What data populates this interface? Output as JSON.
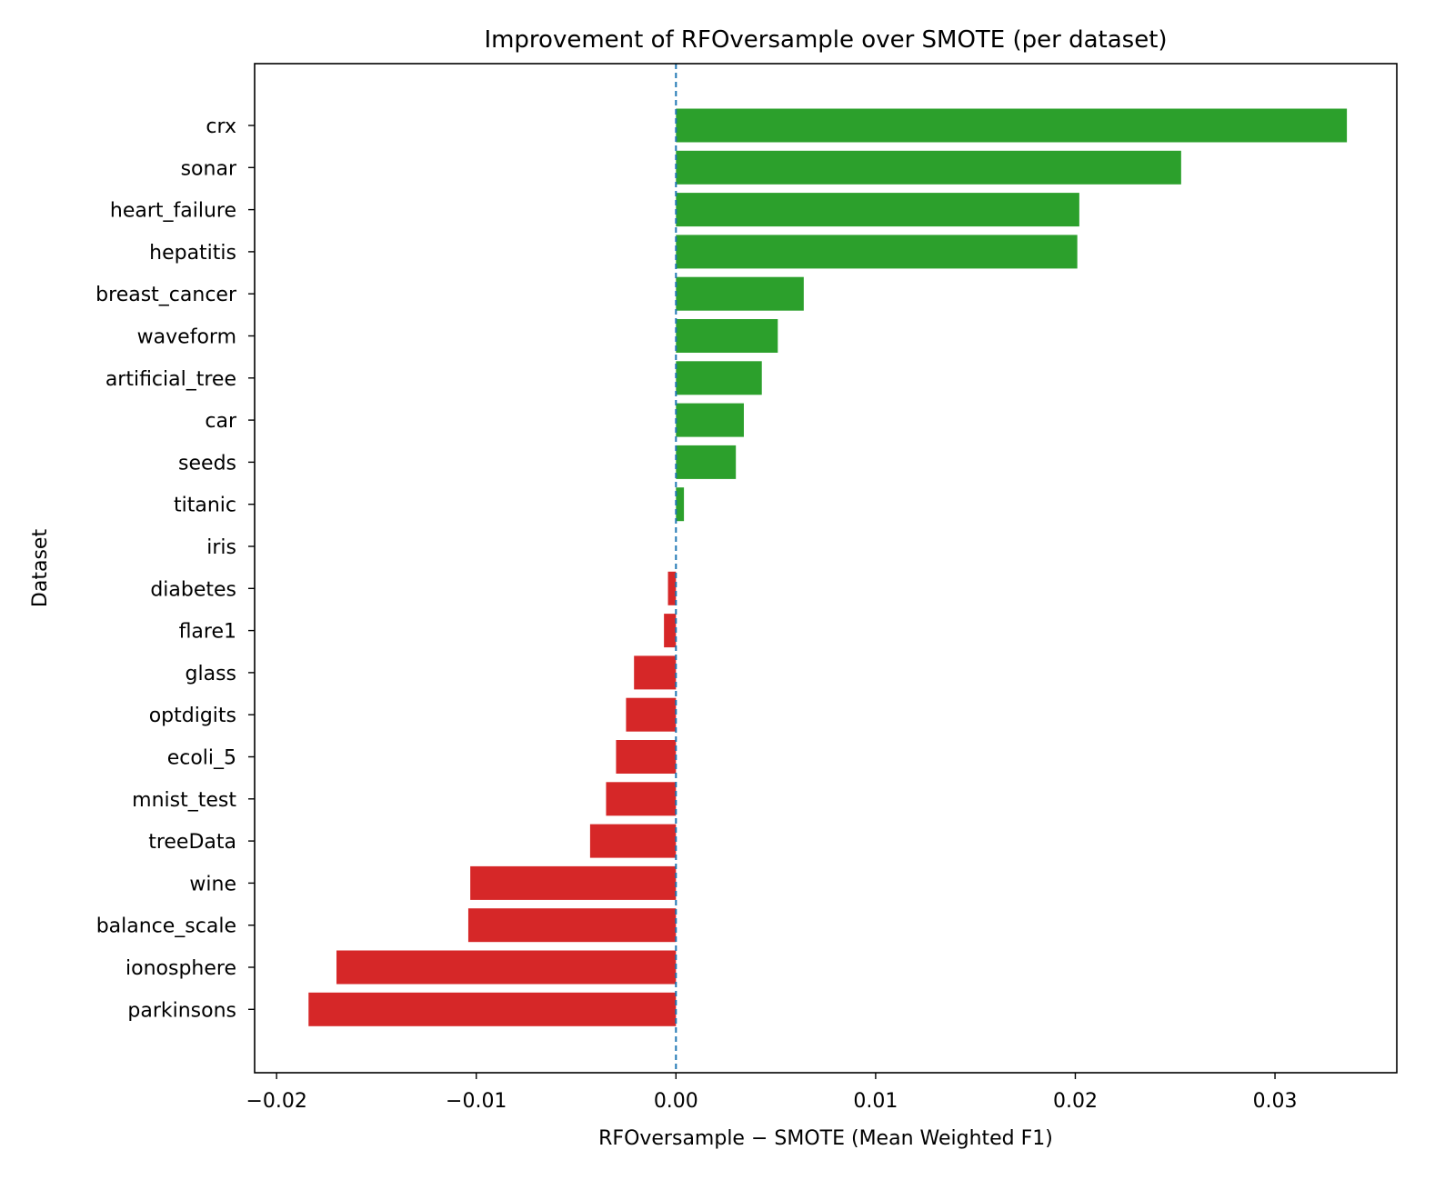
{
  "chart_data": {
    "type": "bar",
    "orientation": "horizontal",
    "title": "Improvement of RFOversample over SMOTE (per dataset)",
    "xlabel": "RFOversample − SMOTE (Mean Weighted F1)",
    "ylabel": "Dataset",
    "xlim": [
      -0.0211,
      0.0361
    ],
    "xticks": [
      -0.02,
      -0.01,
      0.0,
      0.01,
      0.02,
      0.03
    ],
    "xtick_labels": [
      "−0.02",
      "−0.01",
      "0.00",
      "0.01",
      "0.02",
      "0.03"
    ],
    "grid": false,
    "reference_line": {
      "x": 0.0,
      "style": "dashed",
      "color": "#1f77b4"
    },
    "colors": {
      "positive": "#2ca02c",
      "negative": "#d62728"
    },
    "categories": [
      "crx",
      "sonar",
      "heart_failure",
      "hepatitis",
      "breast_cancer",
      "waveform",
      "artificial_tree",
      "car",
      "seeds",
      "titanic",
      "iris",
      "diabetes",
      "flare1",
      "glass",
      "optdigits",
      "ecoli_5",
      "mnist_test",
      "treeData",
      "wine",
      "balance_scale",
      "ionosphere",
      "parkinsons"
    ],
    "values": [
      0.0336,
      0.0253,
      0.0202,
      0.0201,
      0.0064,
      0.0051,
      0.0043,
      0.0034,
      0.003,
      0.0004,
      0.0,
      -0.0004,
      -0.0006,
      -0.0021,
      -0.0025,
      -0.003,
      -0.0035,
      -0.0043,
      -0.0103,
      -0.0104,
      -0.017,
      -0.0184
    ]
  }
}
